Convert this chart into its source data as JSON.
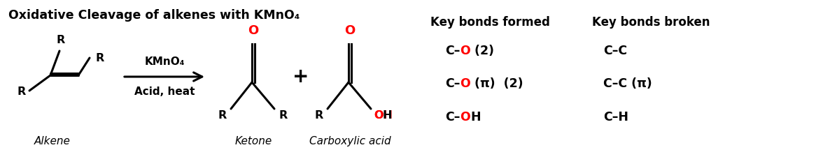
{
  "title": "Oxidative Cleavage of alkenes with KMnO₄",
  "background_color": "#ffffff",
  "black": "#000000",
  "red": "#ff0000",
  "fig_width": 11.66,
  "fig_height": 2.38,
  "dpi": 100,
  "reagent_line1": "KMnO₄",
  "reagent_line2": "Acid, heat",
  "plus_sign": "+",
  "alkene_label": "Alkene",
  "ketone_label": "Ketone",
  "carboxylic_label": "Carboxylic acid",
  "key_formed_header": "Key bonds formed",
  "key_broken_header": "Key bonds broken",
  "formed_items": [
    {
      "parts": [
        {
          "text": "C–",
          "color": "#000000"
        },
        {
          "text": "O",
          "color": "#ff0000"
        },
        {
          "text": " (2)",
          "color": "#000000"
        }
      ]
    },
    {
      "parts": [
        {
          "text": "C–",
          "color": "#000000"
        },
        {
          "text": "O",
          "color": "#ff0000"
        },
        {
          "text": " (π)  (2)",
          "color": "#000000"
        }
      ]
    },
    {
      "parts": [
        {
          "text": "C–",
          "color": "#000000"
        },
        {
          "text": "O",
          "color": "#ff0000"
        },
        {
          "text": "H",
          "color": "#000000"
        }
      ]
    }
  ],
  "broken_items": [
    {
      "parts": [
        {
          "text": "C–C",
          "color": "#000000"
        }
      ]
    },
    {
      "parts": [
        {
          "text": "C–C (π)",
          "color": "#000000"
        }
      ]
    },
    {
      "parts": [
        {
          "text": "C–H",
          "color": "#000000"
        }
      ]
    }
  ]
}
